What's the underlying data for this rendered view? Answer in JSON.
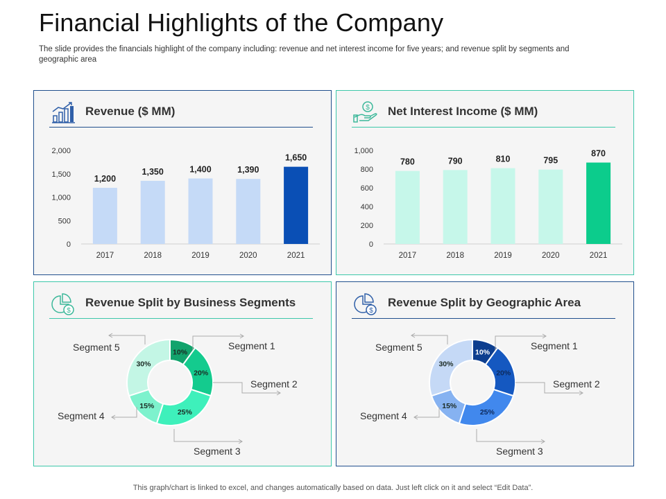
{
  "slide": {
    "title": "Financial Highlights of the Company",
    "subtitle": "The slide provides  the financials highlight of the company including: revenue  and net interest income for five years; and revenue  split by segments and geographic  area",
    "footer": "This graph/chart is linked to excel, and changes automatically based on data. Just left click on it and select “Edit Data”."
  },
  "panels": {
    "revenue": {
      "title": "Revenue ($ MM)",
      "icon": "growth-chart-icon"
    },
    "nii": {
      "title": "Net Interest Income ($ MM)",
      "icon": "money-hand-icon"
    },
    "business": {
      "title": "Revenue Split by Business Segments",
      "icon": "pie-money-icon"
    },
    "geo": {
      "title": "Revenue Split by Geographic Area",
      "icon": "pie-money-icon"
    }
  },
  "chart_data": [
    {
      "type": "bar",
      "title": "Revenue ($ MM)",
      "categories": [
        "2017",
        "2018",
        "2019",
        "2020",
        "2021"
      ],
      "values": [
        1200,
        1350,
        1400,
        1390,
        1650
      ],
      "value_labels": [
        "1,200",
        "1,350",
        "1,400",
        "1,390",
        "1,650"
      ],
      "yticks": [
        "0",
        "500",
        "1,000",
        "1,500",
        "2,000"
      ],
      "ytick_values": [
        0,
        500,
        1000,
        1500,
        2000
      ],
      "ylim": [
        0,
        2000
      ],
      "colors": {
        "bar": "#c5daf7",
        "highlight": "#0a4fb5"
      },
      "highlight_index": 4,
      "grid": false
    },
    {
      "type": "bar",
      "title": "Net Interest Income ($ MM)",
      "categories": [
        "2017",
        "2018",
        "2019",
        "2020",
        "2021"
      ],
      "values": [
        780,
        790,
        810,
        795,
        870
      ],
      "value_labels": [
        "780",
        "790",
        "810",
        "795",
        "870"
      ],
      "yticks": [
        "0",
        "200",
        "400",
        "600",
        "800",
        "1,000"
      ],
      "ytick_values": [
        0,
        200,
        400,
        600,
        800,
        1000
      ],
      "ylim": [
        0,
        1000
      ],
      "colors": {
        "bar": "#c6f7ea",
        "highlight": "#0ccc8c"
      },
      "highlight_index": 4,
      "grid": false
    },
    {
      "type": "pie",
      "title": "Revenue Split by Business Segments",
      "donut": true,
      "categories": [
        "Segment 1",
        "Segment 2",
        "Segment 3",
        "Segment 4",
        "Segment 5"
      ],
      "values": [
        10,
        20,
        25,
        15,
        30
      ],
      "value_labels": [
        "10%",
        "20%",
        "25%",
        "15%",
        "30%"
      ],
      "colors": [
        "#12a36c",
        "#14cb8e",
        "#3ef0bb",
        "#7df2cd",
        "#c3f6e5"
      ]
    },
    {
      "type": "pie",
      "title": "Revenue Split by Geographic Area",
      "donut": true,
      "categories": [
        "Segment 1",
        "Segment 2",
        "Segment 3",
        "Segment 4",
        "Segment 5"
      ],
      "values": [
        10,
        20,
        25,
        15,
        30
      ],
      "value_labels": [
        "10%",
        "20%",
        "25%",
        "15%",
        "30%"
      ],
      "colors": [
        "#0d3e8f",
        "#1558c0",
        "#4188ed",
        "#86b2f1",
        "#c5d9f6"
      ]
    }
  ]
}
